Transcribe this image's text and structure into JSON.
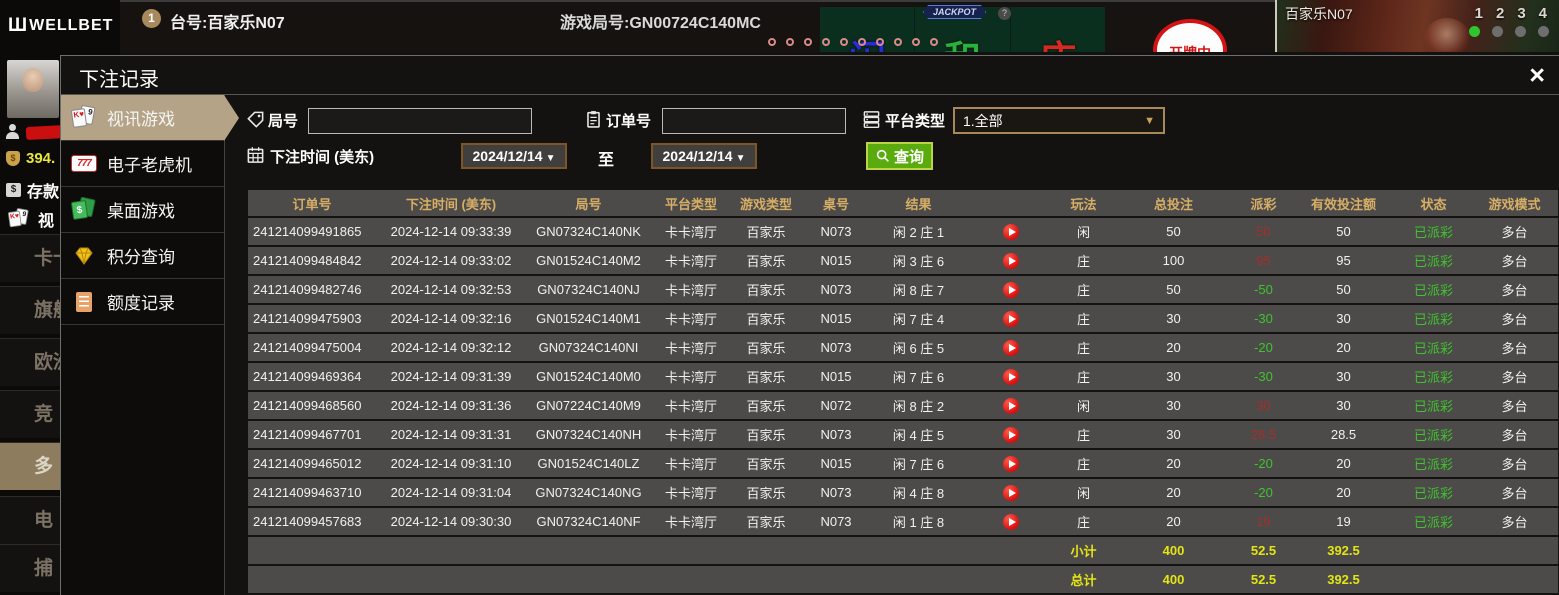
{
  "topbar": {
    "logo_text": "WELLBET",
    "logo_mark": "Ш",
    "table_no_badge": "1",
    "table_label": "台号:百家乐N07",
    "round_label": "游戏局号:GN00724C140MC",
    "jackpot_label": "JACKPOT",
    "jackpot_help": "?",
    "bet_zones": [
      {
        "label": "闲",
        "color": "#2a2ad8"
      },
      {
        "label": "和",
        "color": "#2ab33c"
      },
      {
        "label": "庄",
        "color": "#d42a22"
      }
    ],
    "dealing_label": "开牌中",
    "video_label": "百家乐N07",
    "cams": [
      {
        "num": "1",
        "active": true
      },
      {
        "num": "2",
        "active": false
      },
      {
        "num": "3",
        "active": false
      },
      {
        "num": "4",
        "active": false
      }
    ]
  },
  "under_nav": {
    "balance": "394.",
    "deposit": "存款",
    "video_tab": "视",
    "items": [
      "卡卡",
      "旗舰",
      "欧洲",
      "竞",
      "多",
      "电",
      "捕"
    ]
  },
  "dialog": {
    "title": "下注记录",
    "close_icon": "×"
  },
  "sidebar": {
    "items": [
      {
        "label": "视讯游戏",
        "icon": "cards-icon",
        "active": true
      },
      {
        "label": "电子老虎机",
        "icon": "slot-icon",
        "active": false
      },
      {
        "label": "桌面游戏",
        "icon": "table-games-icon",
        "active": false
      },
      {
        "label": "积分查询",
        "icon": "points-icon",
        "active": false
      },
      {
        "label": "额度记录",
        "icon": "quota-icon",
        "active": false
      }
    ]
  },
  "filters": {
    "round_label": "局号",
    "round_value": "",
    "order_label": "订单号",
    "order_value": "",
    "platform_label": "平台类型",
    "platform_value": "1.全部",
    "time_label": "下注时间 (美东)",
    "date_from": "2024/12/14",
    "to_label": "至",
    "date_to": "2024/12/14",
    "search_label": "查询"
  },
  "table": {
    "columns": [
      "订单号",
      "下注时间 (美东)",
      "局号",
      "平台类型",
      "游戏类型",
      "桌号",
      "结果",
      "",
      "玩法",
      "总投注",
      "派彩",
      "有效投注额",
      "状态",
      "游戏模式"
    ],
    "rows": [
      [
        "241214099491865",
        "2024-12-14 09:33:39",
        "GN07324C140NK",
        "卡卡湾厅",
        "百家乐",
        "N073",
        "闲 2 庄 1",
        "",
        "闲",
        "50",
        "50",
        "50",
        "已派彩",
        "多台"
      ],
      [
        "241214099484842",
        "2024-12-14 09:33:02",
        "GN01524C140M2",
        "卡卡湾厅",
        "百家乐",
        "N015",
        "闲 3 庄 6",
        "",
        "庄",
        "100",
        "95",
        "95",
        "已派彩",
        "多台"
      ],
      [
        "241214099482746",
        "2024-12-14 09:32:53",
        "GN07324C140NJ",
        "卡卡湾厅",
        "百家乐",
        "N073",
        "闲 8 庄 7",
        "",
        "庄",
        "50",
        "-50",
        "50",
        "已派彩",
        "多台"
      ],
      [
        "241214099475903",
        "2024-12-14 09:32:16",
        "GN01524C140M1",
        "卡卡湾厅",
        "百家乐",
        "N015",
        "闲 7 庄 4",
        "",
        "庄",
        "30",
        "-30",
        "30",
        "已派彩",
        "多台"
      ],
      [
        "241214099475004",
        "2024-12-14 09:32:12",
        "GN07324C140NI",
        "卡卡湾厅",
        "百家乐",
        "N073",
        "闲 6 庄 5",
        "",
        "庄",
        "20",
        "-20",
        "20",
        "已派彩",
        "多台"
      ],
      [
        "241214099469364",
        "2024-12-14 09:31:39",
        "GN01524C140M0",
        "卡卡湾厅",
        "百家乐",
        "N015",
        "闲 7 庄 6",
        "",
        "庄",
        "30",
        "-30",
        "30",
        "已派彩",
        "多台"
      ],
      [
        "241214099468560",
        "2024-12-14 09:31:36",
        "GN07224C140M9",
        "卡卡湾厅",
        "百家乐",
        "N072",
        "闲 8 庄 2",
        "",
        "闲",
        "30",
        "30",
        "30",
        "已派彩",
        "多台"
      ],
      [
        "241214099467701",
        "2024-12-14 09:31:31",
        "GN07324C140NH",
        "卡卡湾厅",
        "百家乐",
        "N073",
        "闲 4 庄 5",
        "",
        "庄",
        "30",
        "28.5",
        "28.5",
        "已派彩",
        "多台"
      ],
      [
        "241214099465012",
        "2024-12-14 09:31:10",
        "GN01524C140LZ",
        "卡卡湾厅",
        "百家乐",
        "N015",
        "闲 7 庄 6",
        "",
        "庄",
        "20",
        "-20",
        "20",
        "已派彩",
        "多台"
      ],
      [
        "241214099463710",
        "2024-12-14 09:31:04",
        "GN07324C140NG",
        "卡卡湾厅",
        "百家乐",
        "N073",
        "闲 4 庄 8",
        "",
        "闲",
        "20",
        "-20",
        "20",
        "已派彩",
        "多台"
      ],
      [
        "241214099457683",
        "2024-12-14 09:30:30",
        "GN07324C140NF",
        "卡卡湾厅",
        "百家乐",
        "N073",
        "闲 1 庄 8",
        "",
        "庄",
        "20",
        "19",
        "19",
        "已派彩",
        "多台"
      ]
    ],
    "subtotal": {
      "label": "小计",
      "total_bet": "400",
      "payout": "52.5",
      "valid_bet": "392.5"
    },
    "total": {
      "label": "总计",
      "total_bet": "400",
      "payout": "52.5",
      "valid_bet": "392.5"
    }
  },
  "colors": {
    "--c-win": "#a42e2e",
    "--c-loss": "#3fc32e",
    "--c-paid": "#3fc32e",
    "--c-sum": "#e3e514",
    "--c-gold": "#d6ae66",
    "--c-tan": "#b4a386",
    "--c-btn": "#5aab0e",
    "--c-dateborder": "#7d5626"
  }
}
